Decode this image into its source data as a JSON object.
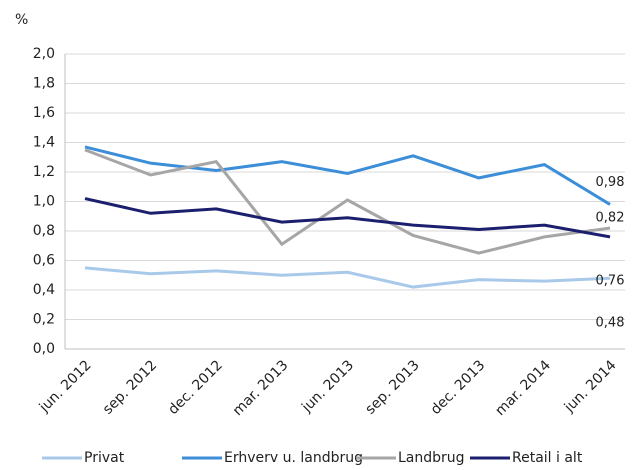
{
  "chart_data": {
    "type": "line",
    "y_label": "%",
    "categories": [
      "jun. 2012",
      "sep. 2012",
      "dec. 2012",
      "mar. 2013",
      "jun. 2013",
      "sep. 2013",
      "dec. 2013",
      "mar. 2014",
      "jun. 2014"
    ],
    "series": [
      {
        "name": "Privat",
        "color": "#a9c9ea",
        "values": [
          0.55,
          0.51,
          0.53,
          0.5,
          0.52,
          0.42,
          0.47,
          0.46,
          0.48
        ],
        "value_labels": [
          null,
          null,
          null,
          null,
          null,
          null,
          null,
          null,
          "0,48"
        ]
      },
      {
        "name": "Erhverv u. landbrug",
        "color": "#3d8ed8",
        "values": [
          1.37,
          1.26,
          1.21,
          1.27,
          1.19,
          1.31,
          1.16,
          1.25,
          0.98
        ],
        "value_labels": [
          null,
          null,
          null,
          null,
          null,
          null,
          null,
          null,
          "0,98"
        ]
      },
      {
        "name": "Landbrug",
        "color": "#a6a6a6",
        "values": [
          1.35,
          1.18,
          1.27,
          0.71,
          1.01,
          0.77,
          0.65,
          0.76,
          0.82
        ],
        "value_labels": [
          null,
          null,
          null,
          null,
          null,
          null,
          null,
          null,
          "0,82"
        ]
      },
      {
        "name": "Retail i alt",
        "color": "#1b1f6e",
        "values": [
          1.02,
          0.92,
          0.95,
          0.86,
          0.89,
          0.84,
          0.81,
          0.84,
          0.76
        ],
        "value_labels": [
          null,
          null,
          null,
          null,
          null,
          null,
          null,
          null,
          "0,76"
        ]
      }
    ],
    "ylim": [
      0,
      2.0
    ],
    "yticks": [
      {
        "value": 0,
        "label": "0,0"
      },
      {
        "value": 0.2,
        "label": "0,2"
      },
      {
        "value": 0.4,
        "label": "0,4"
      },
      {
        "value": 0.6,
        "label": "0,6"
      },
      {
        "value": 0.8,
        "label": "0,8"
      },
      {
        "value": 1.0,
        "label": "1,0"
      },
      {
        "value": 1.2,
        "label": "1,2"
      },
      {
        "value": 1.4,
        "label": "1,4"
      },
      {
        "value": 1.6,
        "label": "1,6"
      },
      {
        "value": 1.8,
        "label": "1,8"
      },
      {
        "value": 2.0,
        "label": "2,0"
      }
    ],
    "grid": true,
    "legend": "bottom"
  }
}
